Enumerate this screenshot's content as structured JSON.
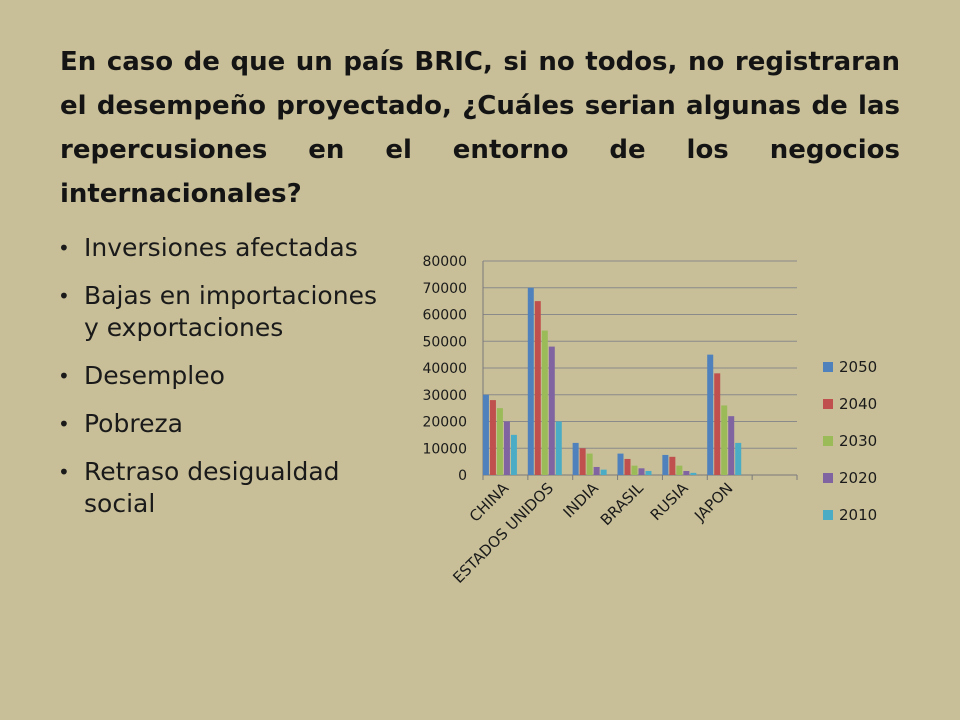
{
  "slide": {
    "title": "En caso de que un país BRIC, si no todos, no registraran el desempeño proyectado, ¿Cuáles serian algunas de las repercusiones  en el entorno de los negocios internacionales?",
    "bullets": [
      "Inversiones afectadas",
      "Bajas en importaciones y exportaciones",
      "Desempleo",
      "Pobreza",
      "Retraso desigualdad social"
    ]
  },
  "chart_data": {
    "type": "bar",
    "categories": [
      "CHINA",
      "ESTADOS UNIDOS",
      "INDIA",
      "BRASIL",
      "RUSIA",
      "JAPON",
      ""
    ],
    "series": [
      {
        "name": "2050",
        "color": "#4f81bd",
        "values": [
          30000,
          70000,
          12000,
          8000,
          7500,
          45000,
          0
        ]
      },
      {
        "name": "2040",
        "color": "#c0504d",
        "values": [
          28000,
          65000,
          10000,
          6000,
          6800,
          38000,
          0
        ]
      },
      {
        "name": "2030",
        "color": "#9bbb59",
        "values": [
          25000,
          54000,
          8000,
          3500,
          3500,
          26000,
          0
        ]
      },
      {
        "name": "2020",
        "color": "#8064a2",
        "values": [
          20000,
          48000,
          3000,
          2500,
          1500,
          22000,
          0
        ]
      },
      {
        "name": "2010",
        "color": "#4bacc6",
        "values": [
          15000,
          20000,
          2000,
          1500,
          800,
          12000,
          0
        ]
      }
    ],
    "yticks": [
      "0",
      "10000",
      "20000",
      "30000",
      "40000",
      "50000",
      "60000",
      "70000",
      "80000"
    ],
    "ylim": [
      0,
      80000
    ],
    "grid": true,
    "legend": "right"
  }
}
